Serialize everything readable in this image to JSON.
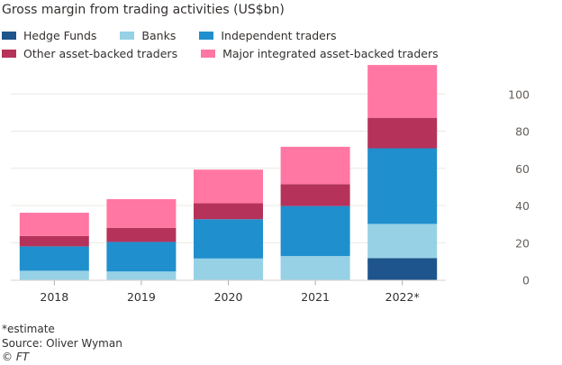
{
  "chart_data": {
    "type": "bar",
    "stacked": true,
    "title": "Gross margin from trading activities (US$bn)",
    "categories": [
      "2018",
      "2019",
      "2020",
      "2021",
      "2022*"
    ],
    "series": [
      {
        "name": "Hedge Funds",
        "color": "#1e558c",
        "values": [
          0,
          0,
          0,
          0,
          11.7
        ]
      },
      {
        "name": "Banks",
        "color": "#96d1e6",
        "values": [
          4.9,
          4.5,
          11.5,
          12.8,
          18.4
        ]
      },
      {
        "name": "Independent traders",
        "color": "#1f8fcd",
        "values": [
          13.1,
          15.9,
          21.1,
          26.9,
          40.7
        ]
      },
      {
        "name": "Other asset-backed traders",
        "color": "#b5325b",
        "values": [
          5.6,
          7.6,
          8.6,
          11.8,
          16.4
        ]
      },
      {
        "name": "Major integrated asset-backed traders",
        "color": "#ff77a2",
        "values": [
          12.5,
          15.4,
          18.1,
          20.1,
          28.4
        ]
      }
    ],
    "yticks": [
      "0",
      "20",
      "40",
      "60",
      "80",
      "100"
    ],
    "ylim": [
      0,
      120
    ],
    "yaxis_side": "right",
    "grid": true,
    "legend_placement": "top"
  },
  "footnotes": {
    "note": "*estimate",
    "source": "Source: Oliver Wyman",
    "credit": "© FT"
  }
}
